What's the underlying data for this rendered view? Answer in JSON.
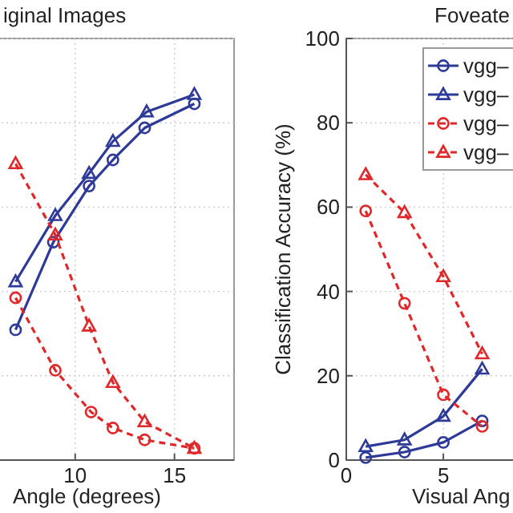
{
  "chart_data": [
    {
      "type": "line",
      "title": "iginal Images",
      "xlabel": "Angle (degrees)",
      "xlim": [
        0,
        18
      ],
      "ylim": [
        0,
        100
      ],
      "xticks": [
        10,
        15
      ],
      "yticks": [
        0,
        20,
        40,
        60,
        80,
        100
      ],
      "grid": true,
      "tick_labels": "x",
      "series": [
        {
          "color": "#2e3a98",
          "marker": "circle",
          "line_style": "solid",
          "x": [
            7,
            8.9,
            10.7,
            11.9,
            13.5,
            16
          ],
          "values": [
            30.9,
            51.7,
            65,
            71.2,
            78.8,
            84.5
          ]
        },
        {
          "color": "#2e3a98",
          "marker": "triangle",
          "line_style": "solid",
          "x": [
            7,
            9,
            10.7,
            11.9,
            13.6,
            16
          ],
          "values": [
            42.3,
            58,
            68,
            75.6,
            82.6,
            86.7
          ]
        },
        {
          "color": "#e0282a",
          "marker": "circle",
          "line_style": "dashed",
          "x": [
            7,
            9,
            10.8,
            11.9,
            13.5,
            16
          ],
          "values": [
            38.5,
            21.3,
            11.4,
            7.6,
            4.8,
            2.8
          ]
        },
        {
          "color": "#e0282a",
          "marker": "triangle",
          "line_style": "dashed",
          "x": [
            7,
            9,
            10.7,
            11.9,
            13.5,
            16
          ],
          "values": [
            70.3,
            53.4,
            31.8,
            18.4,
            9.1,
            2.8
          ]
        }
      ]
    },
    {
      "type": "line",
      "title": "Foveate",
      "xlabel": "Visual Ang",
      "ylabel": "Classification Accuracy (%)",
      "xlim": [
        0,
        18
      ],
      "ylim": [
        0,
        100
      ],
      "xticks": [
        0,
        5
      ],
      "yticks": [
        0,
        20,
        40,
        60,
        80,
        100
      ],
      "grid": true,
      "legend": "top",
      "series": [
        {
          "name": "vgg–",
          "color": "#2e3a98",
          "marker": "circle",
          "line_style": "solid",
          "x": [
            1,
            3,
            5,
            7
          ],
          "values": [
            0.6,
            1.9,
            4.2,
            9.3
          ]
        },
        {
          "name": "vgg–",
          "color": "#2e3a98",
          "marker": "triangle",
          "line_style": "solid",
          "x": [
            1,
            3,
            5,
            7
          ],
          "values": [
            3.2,
            4.8,
            10.4,
            21.6
          ]
        },
        {
          "name": "vgg–",
          "color": "#e0282a",
          "marker": "circle",
          "line_style": "dashed",
          "x": [
            1,
            3,
            5,
            7
          ],
          "values": [
            59.1,
            37.2,
            15.5,
            8
          ]
        },
        {
          "name": "vgg–",
          "color": "#e0282a",
          "marker": "triangle",
          "line_style": "dashed",
          "x": [
            1,
            3,
            5,
            7
          ],
          "values": [
            67.7,
            58.7,
            43.5,
            25.2
          ]
        }
      ]
    }
  ]
}
